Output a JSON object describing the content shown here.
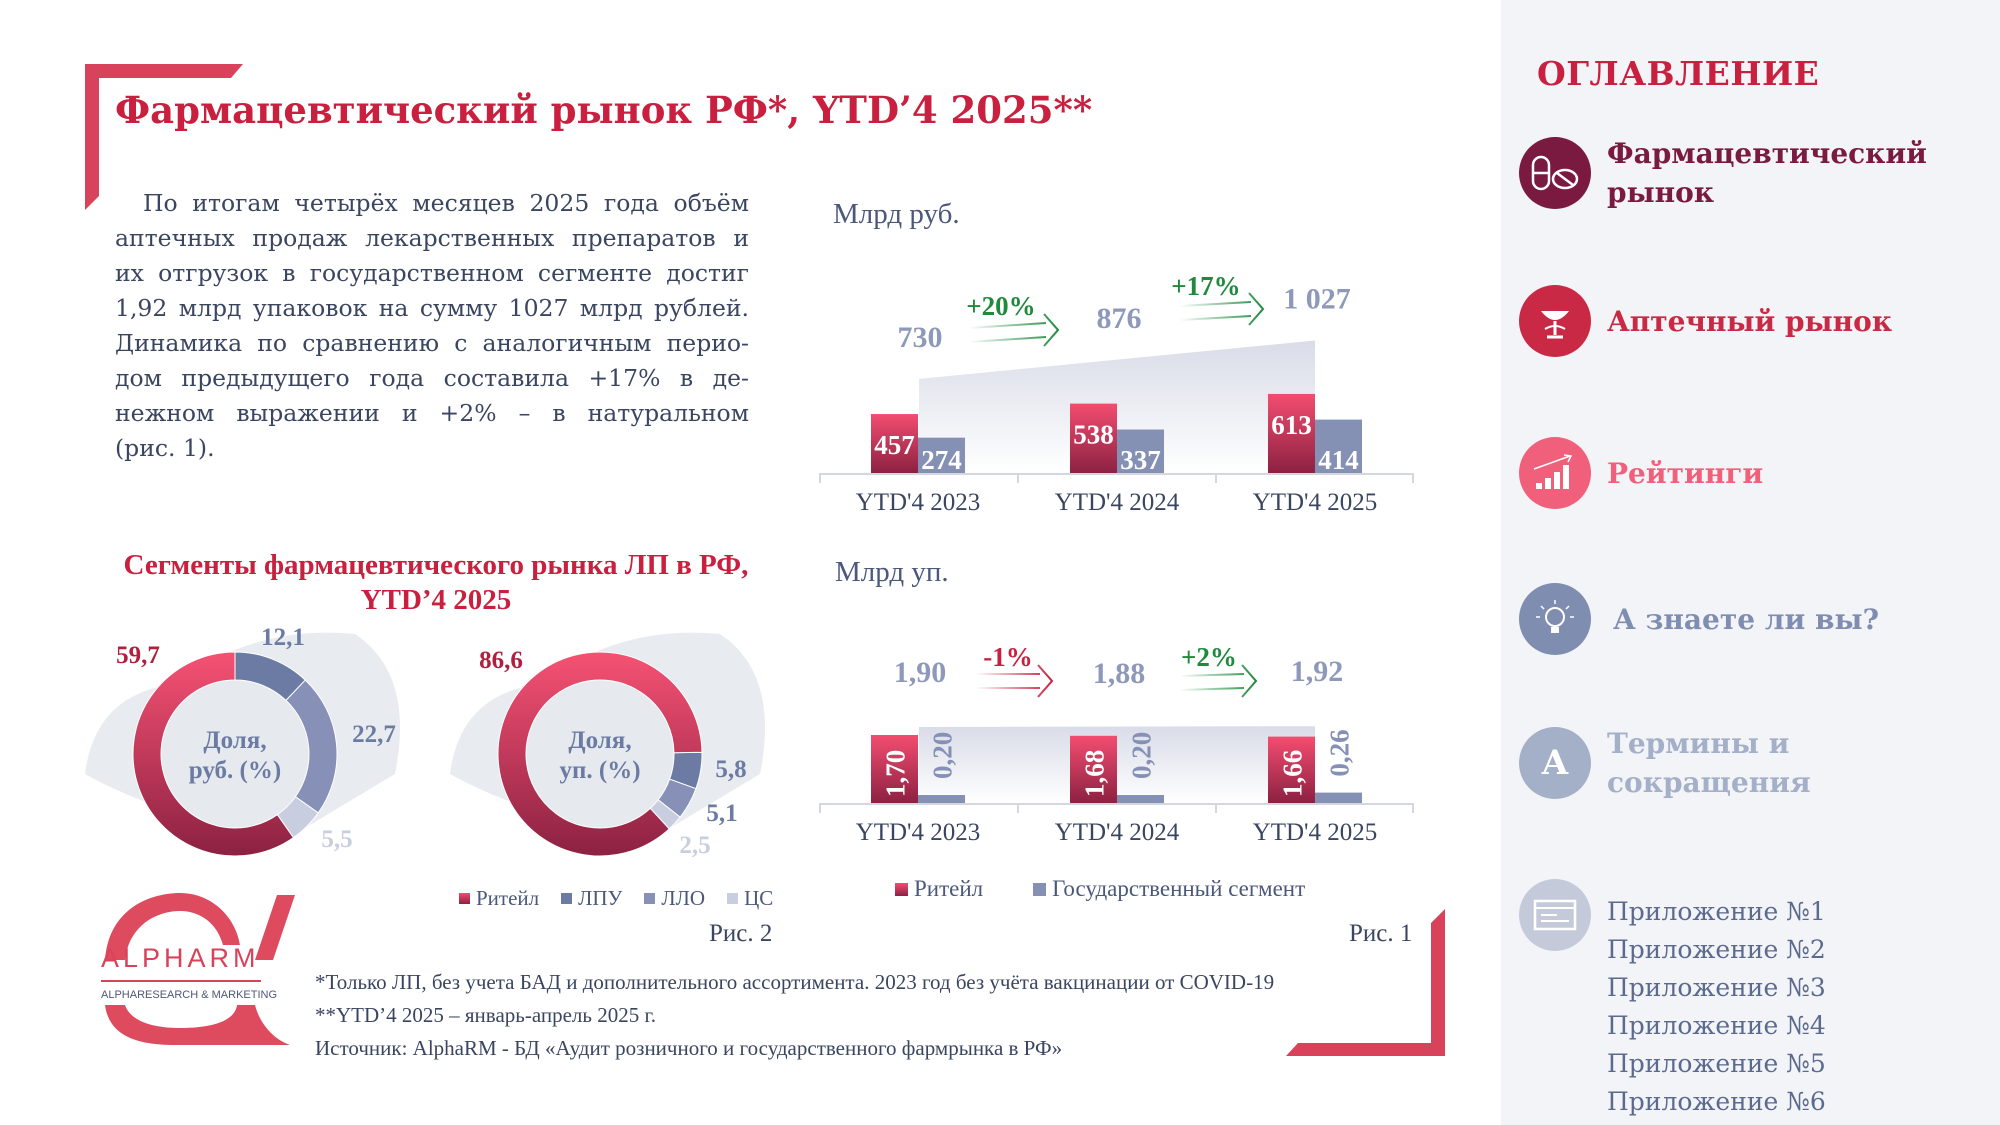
{
  "header": {
    "title": "Фармацевтический рынок РФ*, YTD’4 2025**"
  },
  "summary": {
    "lines": [
      "По итогам четырёх месяцев 2025 года объём",
      "аптечных продаж лекарственных препаратов и",
      "их отгрузок в государственном сегменте достиг",
      "1,92 млрд упаковок на сумму 1027 млрд рублей.",
      "Динамика по сравнению с аналогичным перио-",
      "дом предыдущего года составила +17% в де-",
      "нежном выражении и +2% – в натуральном",
      "(рис. 1)."
    ]
  },
  "colors": {
    "accent": "#c8203e",
    "retail_top": "#f34d70",
    "retail_bottom": "#8c2142",
    "gov": "#8590b5",
    "growth_up": "#1e8a3c",
    "growth_down": "#c8203e",
    "total_label": "#8e99ba"
  },
  "chart_data": [
    {
      "type": "bar",
      "stacked": false,
      "unit": "Млрд руб.",
      "categories": [
        "YTD'4 2023",
        "YTD'4 2024",
        "YTD'4 2025"
      ],
      "series": [
        {
          "name": "Ритейл",
          "values": [
            457,
            538,
            613
          ],
          "labels": [
            "457",
            "538",
            "613"
          ]
        },
        {
          "name": "Государственный сегмент",
          "values": [
            274,
            337,
            414
          ],
          "labels": [
            "274",
            "337",
            "414"
          ]
        }
      ],
      "totals": [
        730,
        876,
        1027
      ],
      "total_labels": [
        "730",
        "876",
        "1 027"
      ],
      "growth": [
        {
          "label": "+20%",
          "direction": "up"
        },
        {
          "label": "+17%",
          "direction": "up"
        }
      ]
    },
    {
      "type": "bar",
      "stacked": false,
      "unit": "Млрд уп.",
      "categories": [
        "YTD'4 2023",
        "YTD'4 2024",
        "YTD'4 2025"
      ],
      "series": [
        {
          "name": "Ритейл",
          "values": [
            1.7,
            1.68,
            1.66
          ],
          "labels": [
            "1,70",
            "1,68",
            "1,66"
          ]
        },
        {
          "name": "Государственный сегмент",
          "values": [
            0.2,
            0.2,
            0.26
          ],
          "labels": [
            "0,20",
            "0,20",
            "0,26"
          ]
        }
      ],
      "totals": [
        1.9,
        1.88,
        1.92
      ],
      "total_labels": [
        "1,90",
        "1,88",
        "1,92"
      ],
      "growth": [
        {
          "label": "-1%",
          "direction": "down"
        },
        {
          "label": "+2%",
          "direction": "up"
        }
      ],
      "legend": [
        "Ритейл",
        "Государственный сегмент"
      ],
      "figure_label": "Рис. 1"
    },
    {
      "type": "pie",
      "donut": true,
      "title": "Сегменты фармацевтического рынка ЛП в РФ, YTD’4 2025",
      "center_label": [
        "Доля,",
        "руб. (%)"
      ],
      "slices": [
        {
          "name": "ЛПУ",
          "value": 12.1,
          "label": "12,1",
          "color": "#6b7ba3"
        },
        {
          "name": "ЛЛО",
          "value": 22.7,
          "label": "22,7",
          "color": "#8791b8"
        },
        {
          "name": "ЦС",
          "value": 5.5,
          "label": "5,5",
          "color": "#c9cde0"
        },
        {
          "name": "Ритейл",
          "value": 59.7,
          "label": "59,7",
          "color": "#e0405f"
        }
      ]
    },
    {
      "type": "pie",
      "donut": true,
      "center_label": [
        "Доля,",
        "уп. (%)"
      ],
      "slices": [
        {
          "name": "ЛПУ",
          "value": 5.8,
          "label": "5,8",
          "color": "#6b7ba3"
        },
        {
          "name": "ЛЛО",
          "value": 5.1,
          "label": "5,1",
          "color": "#8791b8"
        },
        {
          "name": "ЦС",
          "value": 2.5,
          "label": "2,5",
          "color": "#c9cde0"
        },
        {
          "name": "Ритейл",
          "value": 86.6,
          "label": "86,6",
          "color": "#e0405f"
        }
      ],
      "legend": [
        "Ритейл",
        "ЛПУ",
        "ЛЛО",
        "ЦС"
      ],
      "figure_label": "Рис. 2"
    }
  ],
  "donut_section": {
    "title_line1": "Сегменты фармацевтического рынка ЛП в РФ,",
    "title_line2": "YTD’4 2025"
  },
  "logo": {
    "name": "ALPHARM",
    "tagline": "ALPHARESEARCH & MARKETING"
  },
  "footnotes": [
    "*Только ЛП, без учета БАД и дополнительного ассортимента. 2023 год без учёта вакцинации от COVID-19",
    "**YTD’4 2025 – январь-апрель 2025 г.",
    "Источник: AlphaRM - БД «Аудит розничного и государственного фармрынка в РФ»"
  ],
  "sidebar": {
    "title": "ОГЛАВЛЕНИЕ",
    "items": [
      {
        "label_line1": "Фармацевтический",
        "label_line2": "рынок",
        "icon": "pills-icon",
        "color": "#7a1a40"
      },
      {
        "label_line1": "Аптечный рынок",
        "label_line2": "",
        "icon": "bowl-of-hygieia-icon",
        "color": "#c92944"
      },
      {
        "label_line1": "Рейтинги",
        "label_line2": "",
        "icon": "bar-chart-icon",
        "color": "#f0607a"
      },
      {
        "label_line1": "А знаете ли вы?",
        "label_line2": "",
        "icon": "lightbulb-icon",
        "color": "#7f8db0"
      },
      {
        "label_line1": "Термины и",
        "label_line2": "сокращения",
        "icon": "letter-a-icon",
        "color": "#a4afc8"
      }
    ],
    "appendix_icon": {
      "icon": "document-icon",
      "color": "#c5cadb"
    },
    "appendices": [
      "Приложение №1",
      "Приложение №2",
      "Приложение №3",
      "Приложение №4",
      "Приложение №5",
      "Приложение №6"
    ]
  }
}
